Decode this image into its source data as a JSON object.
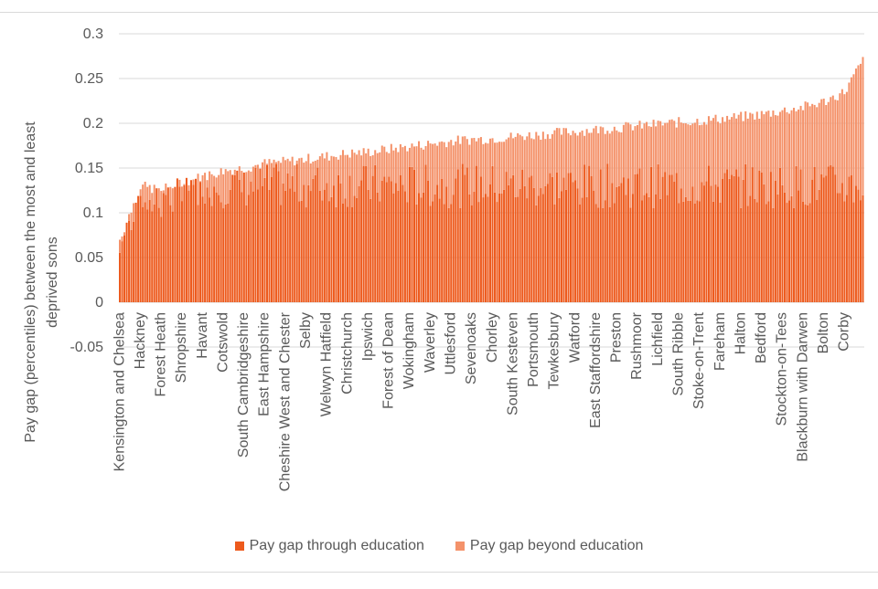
{
  "chart_data": {
    "type": "bar",
    "stacked": true,
    "ylabel": "Pay gap (percentiles) between the most and least deprived sons",
    "xlabel": "",
    "ylim": [
      -0.05,
      0.3
    ],
    "yticks": [
      -0.05,
      0,
      0.05,
      0.1,
      0.15,
      0.2,
      0.25,
      0.3
    ],
    "ytick_labels": [
      "-0.05",
      "0",
      "0.05",
      "0.1",
      "0.15",
      "0.2",
      "0.25",
      "0.3"
    ],
    "grid": true,
    "legend_position": "bottom",
    "category_count": 324,
    "categories_labeled": [
      {
        "index": 0,
        "label": "Kensington and Chelsea"
      },
      {
        "index": 9,
        "label": "Hackney"
      },
      {
        "index": 18,
        "label": "Forest Heath"
      },
      {
        "index": 27,
        "label": "Shropshire"
      },
      {
        "index": 36,
        "label": "Havant"
      },
      {
        "index": 45,
        "label": "Cotswold"
      },
      {
        "index": 54,
        "label": "South Cambridgeshire"
      },
      {
        "index": 63,
        "label": "East Hampshire"
      },
      {
        "index": 72,
        "label": "Cheshire West and Chester"
      },
      {
        "index": 81,
        "label": "Selby"
      },
      {
        "index": 90,
        "label": "Welwyn Hatfield"
      },
      {
        "index": 99,
        "label": "Christchurch"
      },
      {
        "index": 108,
        "label": "Ipswich"
      },
      {
        "index": 117,
        "label": "Forest of Dean"
      },
      {
        "index": 126,
        "label": "Wokingham"
      },
      {
        "index": 135,
        "label": "Waverley"
      },
      {
        "index": 144,
        "label": "Uttlesford"
      },
      {
        "index": 153,
        "label": "Sevenoaks"
      },
      {
        "index": 162,
        "label": "Chorley"
      },
      {
        "index": 171,
        "label": "South Kesteven"
      },
      {
        "index": 180,
        "label": "Portsmouth"
      },
      {
        "index": 189,
        "label": "Tewkesbury"
      },
      {
        "index": 198,
        "label": "Watford"
      },
      {
        "index": 207,
        "label": "East Staffordshire"
      },
      {
        "index": 216,
        "label": "Preston"
      },
      {
        "index": 225,
        "label": "Rushmoor"
      },
      {
        "index": 234,
        "label": "Lichfield"
      },
      {
        "index": 243,
        "label": "South Ribble"
      },
      {
        "index": 252,
        "label": "Stoke-on-Trent"
      },
      {
        "index": 261,
        "label": "Fareham"
      },
      {
        "index": 270,
        "label": "Halton"
      },
      {
        "index": 279,
        "label": "Bedford"
      },
      {
        "index": 288,
        "label": "Stockton-on-Tees"
      },
      {
        "index": 297,
        "label": "Blackburn with Darwen"
      },
      {
        "index": 306,
        "label": "Bolton"
      },
      {
        "index": 315,
        "label": "Corby"
      }
    ],
    "series": [
      {
        "name": "Pay gap through education",
        "color": "#ed5a1d"
      },
      {
        "name": "Pay gap beyond education",
        "color": "#f4926a"
      }
    ],
    "total_profile": {
      "description_values_at_index": [
        {
          "index": 0,
          "value": 0.07
        },
        {
          "index": 9,
          "value": 0.13
        },
        {
          "index": 18,
          "value": 0.125
        },
        {
          "index": 27,
          "value": 0.135
        },
        {
          "index": 36,
          "value": 0.14
        },
        {
          "index": 45,
          "value": 0.147
        },
        {
          "index": 54,
          "value": 0.15
        },
        {
          "index": 63,
          "value": 0.155
        },
        {
          "index": 72,
          "value": 0.157
        },
        {
          "index": 81,
          "value": 0.16
        },
        {
          "index": 90,
          "value": 0.163
        },
        {
          "index": 99,
          "value": 0.166
        },
        {
          "index": 108,
          "value": 0.168
        },
        {
          "index": 117,
          "value": 0.171
        },
        {
          "index": 126,
          "value": 0.174
        },
        {
          "index": 135,
          "value": 0.177
        },
        {
          "index": 144,
          "value": 0.18
        },
        {
          "index": 153,
          "value": 0.182
        },
        {
          "index": 162,
          "value": 0.183
        },
        {
          "index": 171,
          "value": 0.185
        },
        {
          "index": 180,
          "value": 0.187
        },
        {
          "index": 189,
          "value": 0.189
        },
        {
          "index": 198,
          "value": 0.191
        },
        {
          "index": 207,
          "value": 0.193
        },
        {
          "index": 216,
          "value": 0.195
        },
        {
          "index": 225,
          "value": 0.197
        },
        {
          "index": 234,
          "value": 0.199
        },
        {
          "index": 243,
          "value": 0.201
        },
        {
          "index": 252,
          "value": 0.203
        },
        {
          "index": 261,
          "value": 0.205
        },
        {
          "index": 270,
          "value": 0.207
        },
        {
          "index": 279,
          "value": 0.21
        },
        {
          "index": 288,
          "value": 0.214
        },
        {
          "index": 297,
          "value": 0.218
        },
        {
          "index": 306,
          "value": 0.224
        },
        {
          "index": 315,
          "value": 0.235
        },
        {
          "index": 323,
          "value": 0.27
        }
      ],
      "through_education_typical": 0.13
    }
  },
  "legend": {
    "item1": "Pay gap through education",
    "item2": "Pay gap beyond education"
  }
}
